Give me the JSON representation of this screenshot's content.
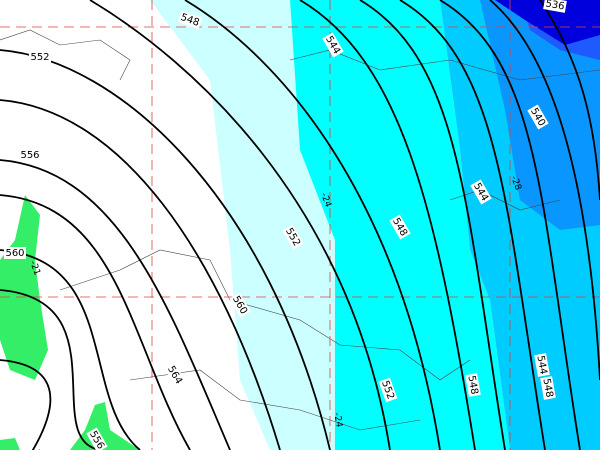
{
  "map": {
    "height_labels": [
      548,
      552,
      556,
      560,
      560,
      564,
      556,
      552,
      548,
      544,
      548,
      552,
      548,
      544,
      544,
      540,
      536
    ],
    "temperature_labels": [
      -24,
      -24,
      -28,
      -21
    ]
  }
}
